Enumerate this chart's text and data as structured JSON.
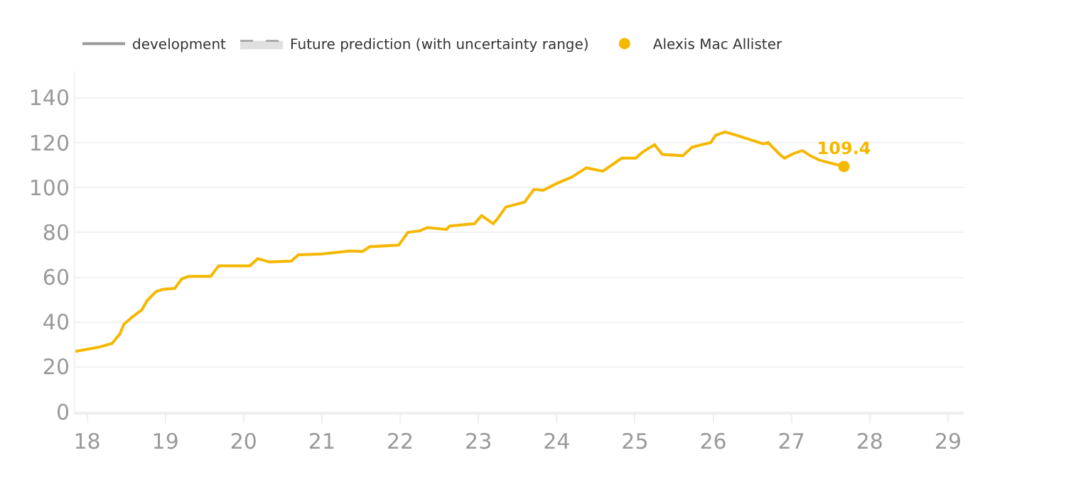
{
  "chart_data": {
    "type": "line",
    "xlim": [
      17.85,
      29.2
    ],
    "xticks": [
      18,
      19,
      20,
      21,
      22,
      23,
      24,
      25,
      26,
      27,
      28,
      29
    ],
    "ylim": [
      0,
      152
    ],
    "yticks": [
      0,
      20,
      40,
      60,
      80,
      100,
      120,
      140
    ],
    "grid": "y",
    "legend": "top left",
    "line_style": "solid",
    "marker": "none",
    "series": [
      {
        "name": "development",
        "color": "#999999",
        "type": "line"
      },
      {
        "name": "Future prediction (with uncertainty range)",
        "color": "#e0e0e0",
        "type": "area",
        "line_style": "dashed"
      },
      {
        "name": "Alexis Mac Allister",
        "color": "#f5b800",
        "x": [
          17.85,
          18.15,
          18.32,
          18.42,
          18.47,
          18.58,
          18.7,
          18.77,
          18.88,
          18.97,
          19.12,
          19.21,
          19.3,
          19.58,
          19.68,
          19.91,
          20.08,
          20.18,
          20.33,
          20.61,
          20.7,
          21.0,
          21.36,
          21.52,
          21.61,
          21.98,
          22.1,
          22.25,
          22.35,
          22.59,
          22.63,
          22.95,
          23.04,
          23.19,
          23.25,
          23.35,
          23.59,
          23.71,
          23.83,
          24.01,
          24.19,
          24.38,
          24.59,
          24.83,
          25.01,
          25.1,
          25.25,
          25.35,
          25.61,
          25.73,
          25.97,
          26.03,
          26.15,
          26.3,
          26.64,
          26.7,
          26.85,
          26.91,
          27.03,
          27.14,
          27.24,
          27.36,
          27.67
        ],
        "values": [
          26.9,
          28.8,
          30.5,
          34.8,
          39,
          42.3,
          45.5,
          49.7,
          53.6,
          54.6,
          55,
          59.3,
          60.4,
          60.4,
          65.1,
          65.1,
          65.1,
          68.3,
          66.8,
          67.2,
          70,
          70.4,
          71.7,
          71.5,
          73.6,
          74.3,
          80,
          80.7,
          82.2,
          81.3,
          82.8,
          83.9,
          87.5,
          83.9,
          86.4,
          91.3,
          93.5,
          99.2,
          98.8,
          102,
          104.6,
          108.8,
          107.3,
          113.1,
          113.1,
          115.9,
          119.1,
          114.8,
          114.2,
          118,
          120.1,
          123.3,
          124.8,
          123.3,
          119.5,
          120.1,
          114.8,
          113.1,
          115.2,
          116.5,
          114.2,
          112.2,
          109.4
        ],
        "value_labels": [
          null,
          null,
          null,
          null,
          null,
          null,
          null,
          null,
          null,
          null,
          null,
          null,
          null,
          null,
          null,
          null,
          null,
          null,
          null,
          null,
          null,
          null,
          null,
          null,
          null,
          null,
          null,
          null,
          null,
          null,
          null,
          null,
          null,
          null,
          null,
          null,
          null,
          null,
          null,
          null,
          null,
          null,
          null,
          null,
          null,
          null,
          null,
          null,
          null,
          null,
          null,
          null,
          null,
          null,
          null,
          null,
          null,
          null,
          null,
          null,
          null,
          null,
          "109.4"
        ]
      }
    ]
  }
}
